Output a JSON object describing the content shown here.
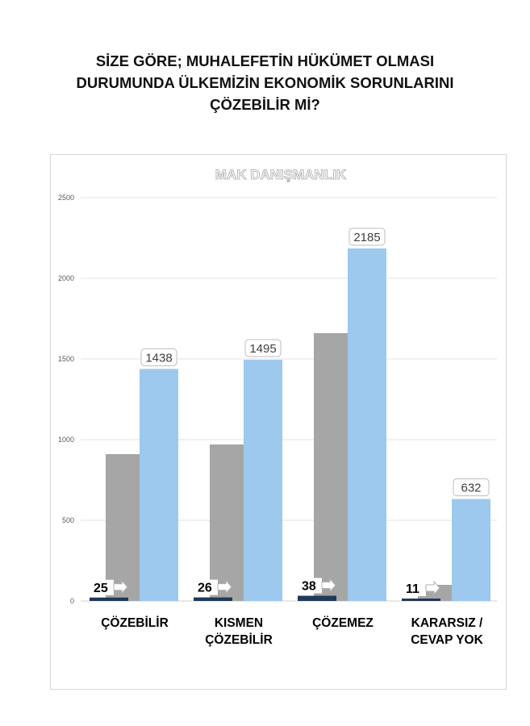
{
  "title_lines": [
    "SİZE GÖRE; MUHALEFETİN HÜKÜMET OLMASI",
    "DURUMUNDA ÜLKEMİZİN EKONOMİK SORUNLARINI",
    "ÇÖZEBİLİR Mİ?"
  ],
  "watermark": "MAK DANIŞMANLIK",
  "colors": {
    "percent_bar": "#1f3a5a",
    "gray_bar": "#a6a6a6",
    "blue_bar": "#9dc9ee",
    "gridline": "#e3e3e3"
  },
  "chart_data": {
    "type": "bar",
    "categories": [
      [
        "ÇÖZEBİLİR"
      ],
      [
        "KISMEN",
        "ÇÖZEBİLİR"
      ],
      [
        "ÇÖZEMEZ"
      ],
      [
        "KARARSIZ /",
        "CEVAP YOK"
      ]
    ],
    "series": [
      {
        "values": [
          25,
          26,
          38,
          11
        ],
        "labels_shown": true,
        "label_style": "arrow-callout"
      },
      {
        "values": [
          910,
          970,
          1660,
          100
        ],
        "labels_shown": false
      },
      {
        "values": [
          1438,
          1495,
          2185,
          632
        ],
        "labels_shown": true,
        "label_style": "boxed"
      }
    ],
    "yticks": [
      0,
      500,
      1000,
      1500,
      2000,
      2500
    ],
    "ylim": [
      0,
      2500
    ],
    "grid": true,
    "legend": "none"
  }
}
